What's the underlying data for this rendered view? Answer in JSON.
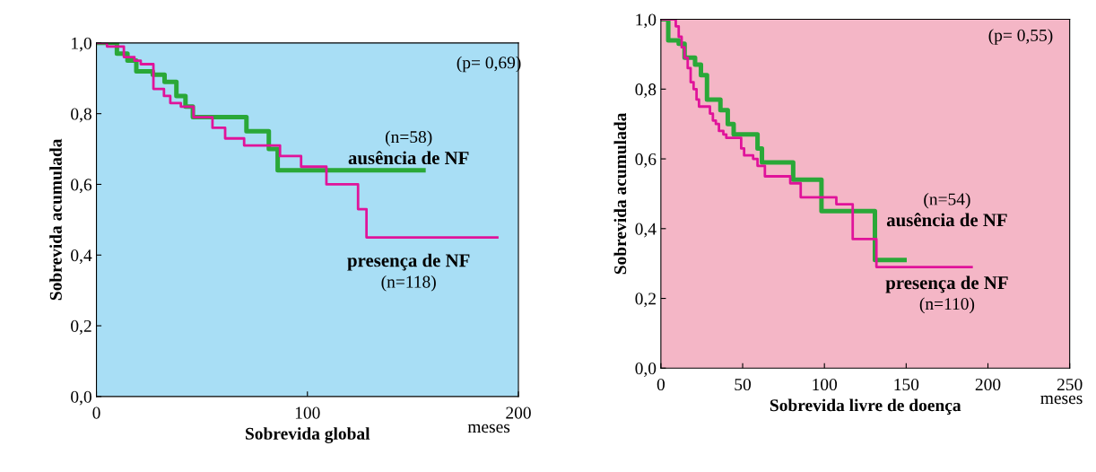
{
  "chart_data": [
    {
      "type": "step",
      "xlabel": "Sobrevida global",
      "ylabel": "Sobrevida acumulada",
      "xlim": [
        0,
        200
      ],
      "xticks": [
        0,
        100,
        200
      ],
      "ylim": [
        0,
        1
      ],
      "yticks": [
        {
          "value": 0,
          "label": "0,0"
        },
        {
          "value": 0.2,
          "label": "0,2"
        },
        {
          "value": 0.4,
          "label": "0,4"
        },
        {
          "value": 0.6,
          "label": "0,6"
        },
        {
          "value": 0.8,
          "label": "0,8"
        },
        {
          "value": 1,
          "label": "1,0"
        }
      ],
      "annotations": [
        "(p= 0,69)",
        "(n=58)",
        "(n=118)",
        "meses"
      ],
      "series": [
        {
          "name": "ausência de NF",
          "color": "#2aa838",
          "x": [
            0,
            9.7,
            14.7,
            18.9,
            26.7,
            32.3,
            37.9,
            42.2,
            45.7,
            71.1,
            81.7,
            85.9,
            155
          ],
          "values": [
            1,
            0.97,
            0.95,
            0.92,
            0.91,
            0.89,
            0.85,
            0.82,
            0.79,
            0.75,
            0.7,
            0.64,
            0.64
          ]
        },
        {
          "name": "presença de NF",
          "color": "#e0139a",
          "x": [
            0,
            5,
            13,
            18,
            21,
            27,
            32,
            35,
            40,
            46,
            55,
            61,
            70,
            87,
            97,
            109,
            124,
            128,
            190
          ],
          "values": [
            1,
            0.99,
            0.96,
            0.95,
            0.94,
            0.87,
            0.85,
            0.83,
            0.82,
            0.79,
            0.76,
            0.73,
            0.71,
            0.68,
            0.65,
            0.6,
            0.53,
            0.45,
            0.45
          ]
        }
      ]
    },
    {
      "type": "step",
      "xlabel": "Sobrevida livre de doença",
      "ylabel": "Sobrevida acumulada",
      "xlim": [
        0,
        250
      ],
      "xticks": [
        0,
        50,
        100,
        150,
        200,
        250
      ],
      "ylim": [
        0,
        1
      ],
      "yticks": [
        {
          "value": 0,
          "label": "0,0"
        },
        {
          "value": 0.2,
          "label": "0,2"
        },
        {
          "value": 0.4,
          "label": "0,4"
        },
        {
          "value": 0.6,
          "label": "0,6"
        },
        {
          "value": 0.8,
          "label": "0,8"
        },
        {
          "value": 1,
          "label": "1,0"
        }
      ],
      "annotations": [
        "(p= 0,55)",
        "(n=54)",
        "(n=110)",
        "meses"
      ],
      "series": [
        {
          "name": "ausência de NF",
          "color": "#2aa838",
          "x": [
            0,
            4.5,
            10.9,
            14.5,
            20.9,
            24.5,
            28.2,
            36.4,
            40.9,
            44.5,
            59.1,
            61.8,
            80.9,
            98.2,
            130.9,
            149
          ],
          "values": [
            1,
            0.94,
            0.93,
            0.89,
            0.87,
            0.84,
            0.77,
            0.74,
            0.7,
            0.67,
            0.63,
            0.59,
            0.54,
            0.45,
            0.31,
            0.31
          ]
        },
        {
          "name": "presença de NF",
          "color": "#e0139a",
          "x": [
            0,
            5.5,
            9.1,
            10.9,
            12.7,
            14.5,
            16.4,
            18.2,
            20,
            21.8,
            23.3,
            30,
            31.8,
            33.6,
            35.5,
            38.2,
            40,
            49.1,
            50.9,
            56.4,
            59.1,
            63.6,
            79.1,
            85.5,
            107.3,
            117.3,
            131.8,
            190
          ],
          "values": [
            1,
            1,
            0.98,
            0.95,
            0.92,
            0.89,
            0.86,
            0.82,
            0.8,
            0.77,
            0.75,
            0.73,
            0.71,
            0.7,
            0.68,
            0.67,
            0.66,
            0.63,
            0.61,
            0.6,
            0.58,
            0.55,
            0.53,
            0.49,
            0.47,
            0.37,
            0.29,
            0.29
          ]
        }
      ]
    }
  ]
}
